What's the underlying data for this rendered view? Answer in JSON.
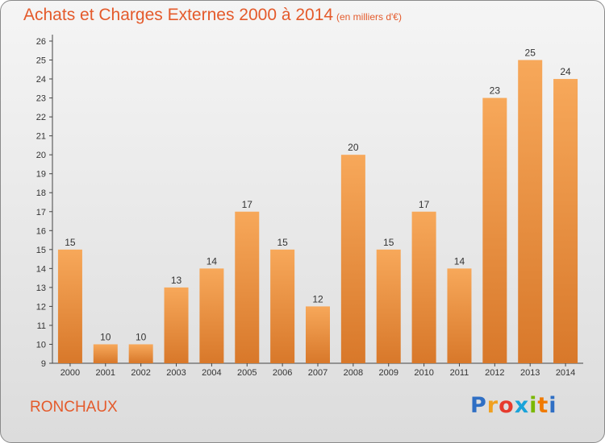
{
  "title": "Achats et Charges Externes 2000 à 2014",
  "subtitle": "(en milliers d'€)",
  "city": "RONCHAUX",
  "logo": {
    "letters": [
      "P",
      "r",
      "o",
      "x",
      "i",
      "t",
      "i"
    ],
    "colors": [
      "#2f6fc4",
      "#f0a020",
      "#e63b2e",
      "#1aa3d9",
      "#7ab800",
      "#f07a00",
      "#2f6fc4"
    ]
  },
  "colors": {
    "accent": "#e45a2b",
    "bar_light": "#f7a85a",
    "bar_dark": "#d8782a"
  },
  "chart_data": {
    "type": "bar",
    "title": "Achats et Charges Externes 2000 à 2014",
    "subtitle": "(en milliers d'€)",
    "categories": [
      "2000",
      "2001",
      "2002",
      "2003",
      "2004",
      "2005",
      "2006",
      "2007",
      "2008",
      "2009",
      "2010",
      "2011",
      "2012",
      "2013",
      "2014"
    ],
    "values": [
      15,
      10,
      10,
      13,
      14,
      17,
      15,
      12,
      20,
      15,
      17,
      14,
      23,
      25,
      24
    ],
    "ylim": [
      9,
      26
    ],
    "yticks": [
      9,
      10,
      11,
      12,
      13,
      14,
      15,
      16,
      17,
      18,
      19,
      20,
      21,
      22,
      23,
      24,
      25,
      26
    ],
    "grid": false,
    "data_labels": true
  }
}
